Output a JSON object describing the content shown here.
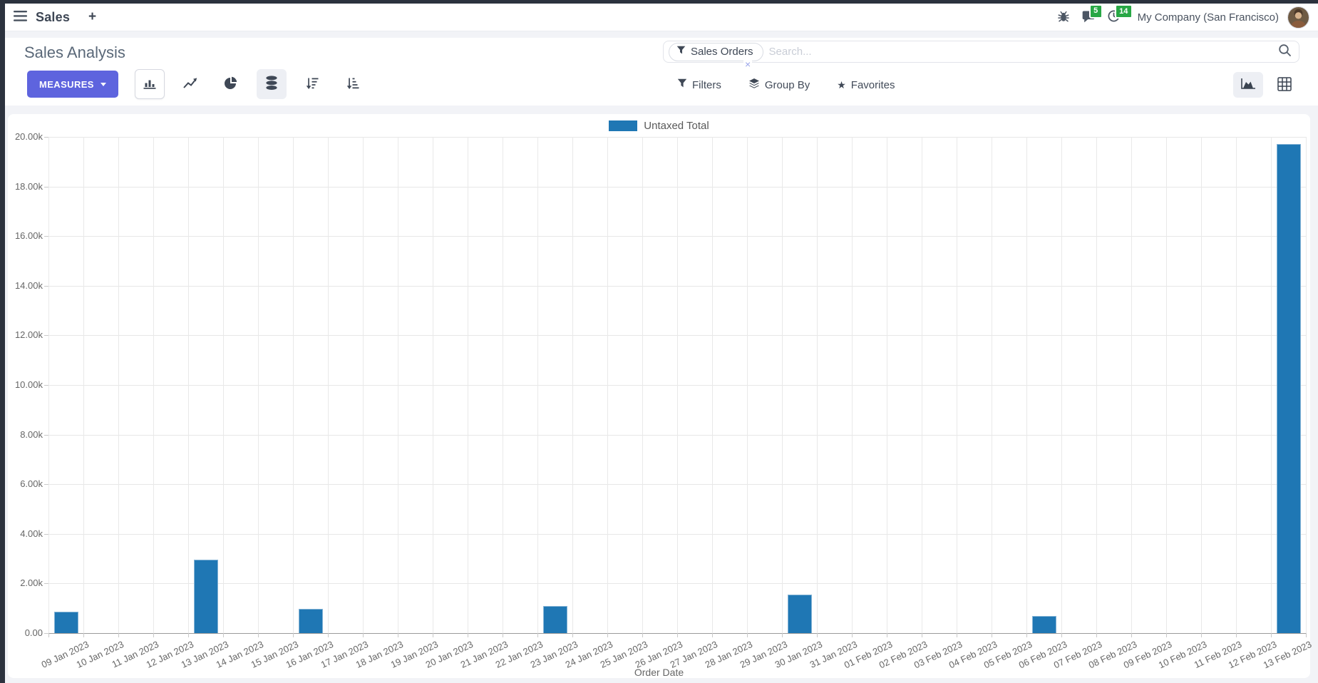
{
  "navbar": {
    "app_label": "Sales",
    "new_tab": "+",
    "messages_badge": "5",
    "activities_badge": "14",
    "company": "My Company (San Francisco)"
  },
  "control_panel": {
    "title": "Sales Analysis",
    "measures_button": "MEASURES",
    "filters": "Filters",
    "group_by": "Group By",
    "favorites": "Favorites",
    "search": {
      "facet_label": "Sales Orders",
      "placeholder": "Search...",
      "remove_facet": "×"
    }
  },
  "colors": {
    "accent": "#5e64de",
    "badge_green": "#28a745",
    "bar_blue": "#1f77b4"
  },
  "chart_data": {
    "type": "bar",
    "title": "",
    "legend": [
      "Untaxed Total"
    ],
    "legend_position": "top",
    "series_color": "#1f77b4",
    "xlabel": "Order Date",
    "ylabel": "",
    "ylim": [
      0,
      20000
    ],
    "grid": true,
    "y_tick_labels": [
      "0.00",
      "2.00k",
      "4.00k",
      "6.00k",
      "8.00k",
      "10.00k",
      "12.00k",
      "14.00k",
      "16.00k",
      "18.00k",
      "20.00k"
    ],
    "categories": [
      "09 Jan 2023",
      "10 Jan 2023",
      "11 Jan 2023",
      "12 Jan 2023",
      "13 Jan 2023",
      "14 Jan 2023",
      "15 Jan 2023",
      "16 Jan 2023",
      "17 Jan 2023",
      "18 Jan 2023",
      "19 Jan 2023",
      "20 Jan 2023",
      "21 Jan 2023",
      "22 Jan 2023",
      "23 Jan 2023",
      "24 Jan 2023",
      "25 Jan 2023",
      "26 Jan 2023",
      "27 Jan 2023",
      "28 Jan 2023",
      "29 Jan 2023",
      "30 Jan 2023",
      "31 Jan 2023",
      "01 Feb 2023",
      "02 Feb 2023",
      "03 Feb 2023",
      "04 Feb 2023",
      "05 Feb 2023",
      "06 Feb 2023",
      "07 Feb 2023",
      "08 Feb 2023",
      "09 Feb 2023",
      "10 Feb 2023",
      "11 Feb 2023",
      "12 Feb 2023",
      "13 Feb 2023"
    ],
    "values": [
      850,
      0,
      0,
      0,
      2950,
      0,
      0,
      970,
      0,
      0,
      0,
      0,
      0,
      0,
      1100,
      0,
      0,
      0,
      0,
      0,
      0,
      1550,
      0,
      0,
      0,
      0,
      0,
      0,
      680,
      0,
      0,
      0,
      0,
      0,
      0,
      19700
    ]
  }
}
